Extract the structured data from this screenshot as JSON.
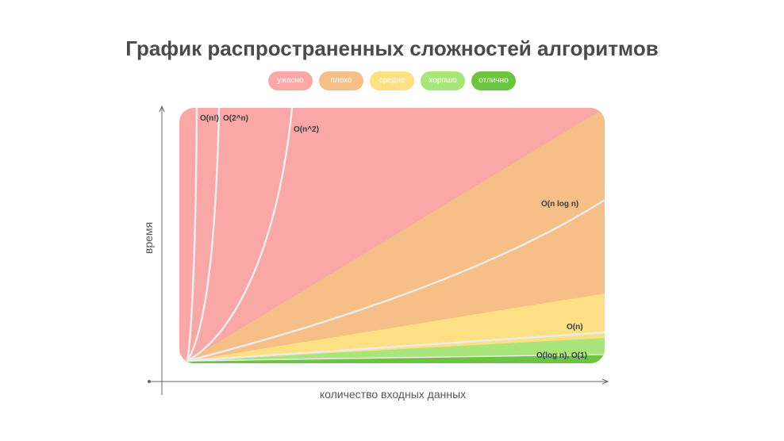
{
  "chart_data": {
    "type": "area",
    "title": "График распространенных сложностей алгоритмов",
    "xlabel": "количество входных данных",
    "ylabel": "время",
    "legend": [
      {
        "label": "ужасно",
        "color": "#f9a7a7"
      },
      {
        "label": "плохо",
        "color": "#f6bf88"
      },
      {
        "label": "средне",
        "color": "#fce083"
      },
      {
        "label": "хорошо",
        "color": "#a9e57a"
      },
      {
        "label": "отлично",
        "color": "#6cc440"
      }
    ],
    "curves": [
      {
        "name": "O(n!)",
        "label": "O(n!)"
      },
      {
        "name": "O(2^n)",
        "label": "O(2^n)"
      },
      {
        "name": "O(n^2)",
        "label": "O(n^2)"
      },
      {
        "name": "O(n log n)",
        "label": "O(n log n)"
      },
      {
        "name": "O(n)",
        "label": "O(n)"
      },
      {
        "name": "O(log n), O(1)",
        "label": "O(log n), O(1)"
      }
    ],
    "grid": false,
    "legend_placement": "top-center"
  }
}
